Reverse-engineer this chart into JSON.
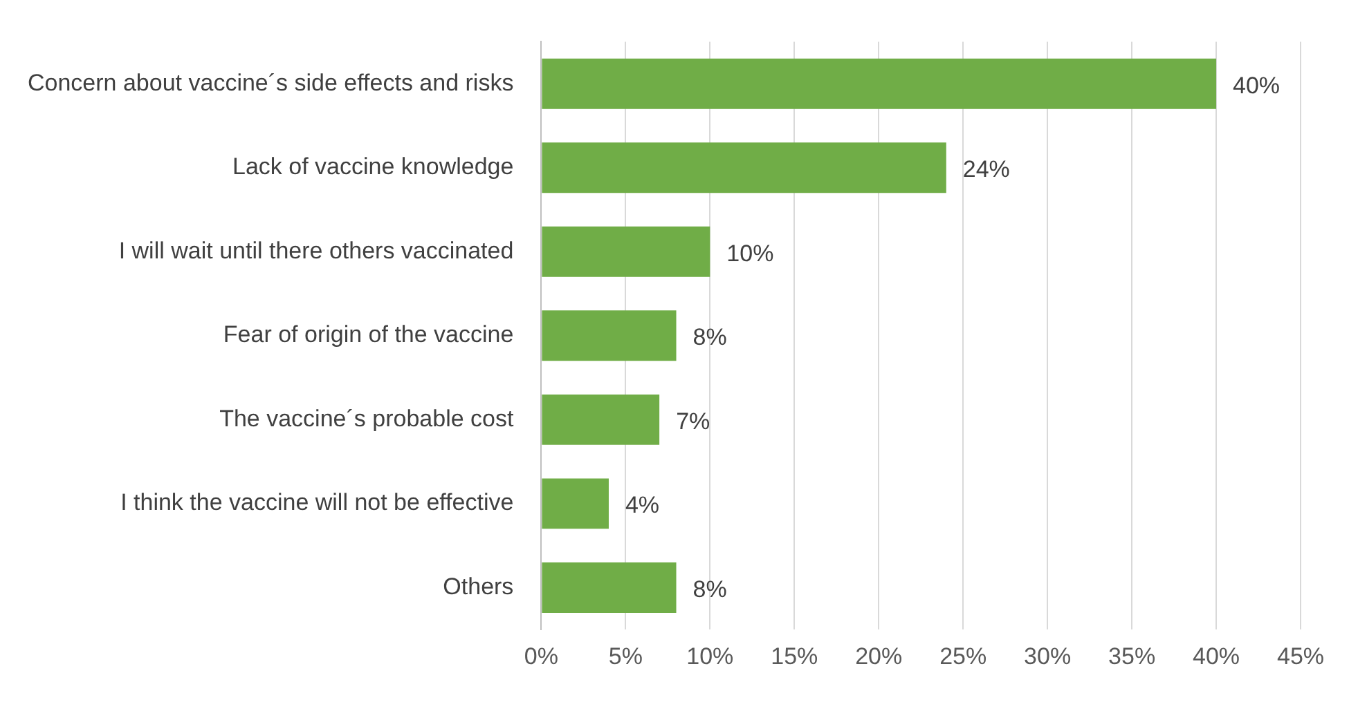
{
  "chart_data": {
    "type": "bar",
    "orientation": "horizontal",
    "categories": [
      "Concern about vaccine´s side effects and risks",
      "Lack of vaccine knowledge",
      "I will wait until there others vaccinated",
      "Fear of origin of the vaccine",
      "The vaccine´s probable cost",
      "I think the vaccine will not be effective",
      "Others"
    ],
    "values": [
      40,
      24,
      10,
      8,
      7,
      4,
      8
    ],
    "value_labels": [
      "40%",
      "24%",
      "10%",
      "8%",
      "7%",
      "4%",
      "8%"
    ],
    "color": "#70ad47",
    "xlim": [
      0,
      45
    ],
    "xticks": [
      {
        "value": 0,
        "label": "0%"
      },
      {
        "value": 5,
        "label": "5%"
      },
      {
        "value": 10,
        "label": "10%"
      },
      {
        "value": 15,
        "label": "15%"
      },
      {
        "value": 20,
        "label": "20%"
      },
      {
        "value": 25,
        "label": "25%"
      },
      {
        "value": 30,
        "label": "30%"
      },
      {
        "value": 35,
        "label": "35%"
      },
      {
        "value": 40,
        "label": "40%"
      },
      {
        "value": 45,
        "label": "45%"
      }
    ],
    "grid": "x",
    "legend": false
  }
}
